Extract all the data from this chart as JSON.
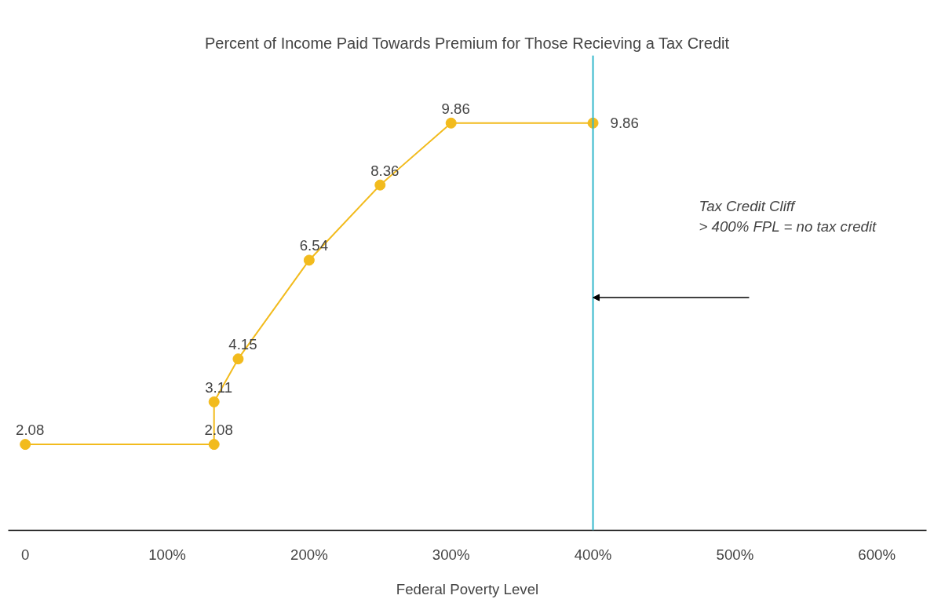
{
  "chart_data": {
    "type": "line",
    "title": "Percent of Income Paid Towards Premium for Those Recieving a Tax Credit",
    "xlabel": "Federal Poverty Level",
    "x": [
      0,
      133,
      133,
      150,
      200,
      250,
      300,
      400
    ],
    "series": [
      {
        "color": "#f2bb1d",
        "values": [
          2.08,
          2.08,
          3.11,
          4.15,
          6.54,
          8.36,
          9.86,
          9.86
        ]
      }
    ],
    "xlim": [
      -12,
      635
    ],
    "ylim": [
      0,
      11.5
    ],
    "xticks": [
      0,
      {
        "value": 100,
        "label": "100%"
      },
      {
        "value": 200,
        "label": "200%"
      },
      {
        "value": 300,
        "label": "300%"
      },
      {
        "value": 400,
        "label": "400%"
      },
      {
        "value": 500,
        "label": "500%"
      },
      {
        "value": 600,
        "label": "600%"
      }
    ],
    "ref_lines": [
      {
        "axis": "x",
        "value": 400,
        "color": "#35b8cc"
      }
    ],
    "annotations": [
      "Tax Credit Cliff\n> 400% FPL = no tax credit"
    ],
    "data_labels": true,
    "marker": "circle",
    "line_style": "solid",
    "grid": false,
    "tick_labels": "x"
  }
}
